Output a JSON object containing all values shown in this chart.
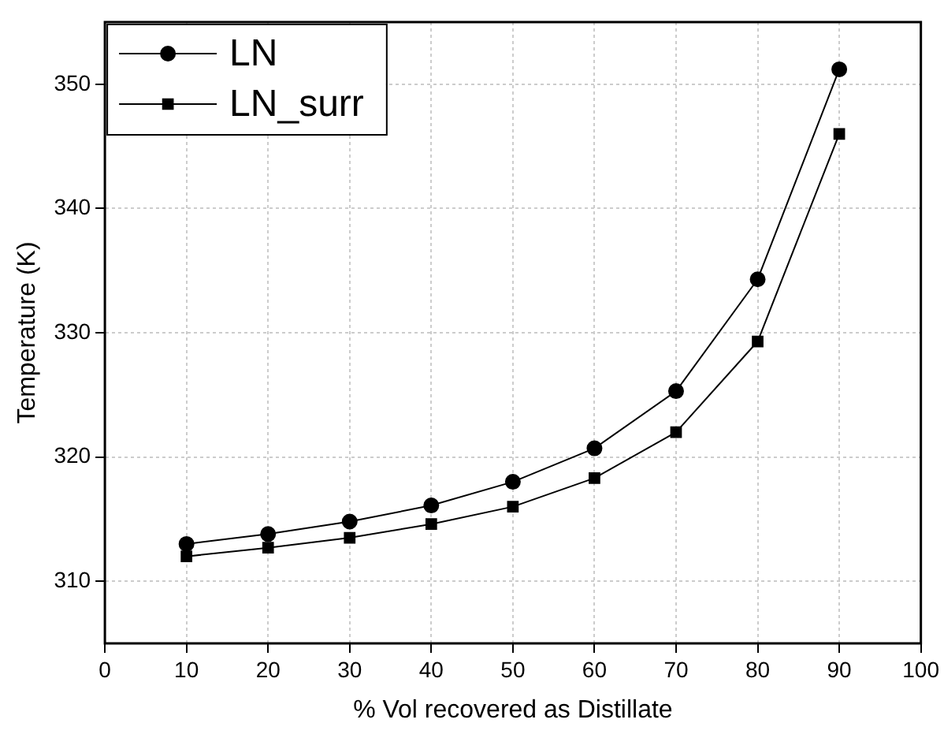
{
  "chart_data": {
    "type": "line",
    "xlabel": "% Vol recovered as Distillate",
    "ylabel": "Temperature (K)",
    "x": [
      10,
      20,
      30,
      40,
      50,
      60,
      70,
      80,
      90
    ],
    "series": [
      {
        "name": "LN",
        "color": "#000000",
        "marker": "circle",
        "values": [
          313.0,
          313.8,
          314.8,
          316.1,
          318.0,
          320.7,
          325.3,
          334.3,
          351.2
        ]
      },
      {
        "name": "LN_surr",
        "color": "#000000",
        "marker": "square",
        "values": [
          312.0,
          312.7,
          313.5,
          314.6,
          316.0,
          318.3,
          322.0,
          329.3,
          346.0
        ]
      }
    ],
    "xlim": [
      0,
      100
    ],
    "xticks": [
      0,
      10,
      20,
      30,
      40,
      50,
      60,
      70,
      80,
      90,
      100
    ],
    "ylim": [
      305,
      355
    ],
    "yticks": [
      310,
      320,
      330,
      340,
      350
    ],
    "grid": true,
    "legend": "top left",
    "line_style": "solid"
  }
}
